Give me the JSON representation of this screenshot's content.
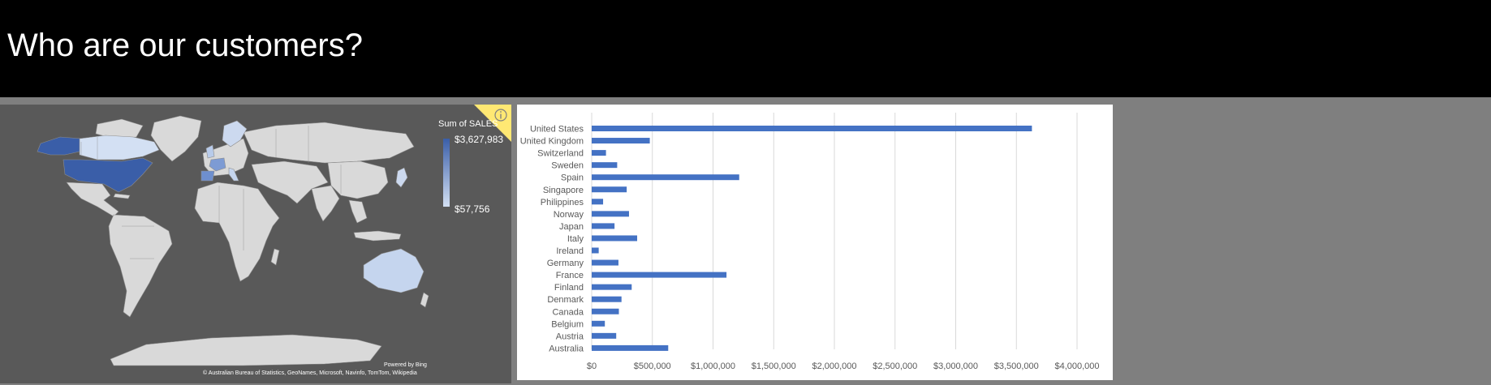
{
  "page": {
    "title": "Who are our customers?",
    "colors": {
      "header_bg": "#000000",
      "page_bg": "#7f7f7f",
      "map_bg": "#595959",
      "bar": "#4472c4"
    }
  },
  "map": {
    "legend_title": "Sum of SALES",
    "legend_max": "$3,627,983",
    "legend_min": "$57,756",
    "powered_by": "Powered by Bing",
    "attribution": "© Australian Bureau of Statistics, GeoNames, Microsoft, Navinfo, TomTom, Wikipedia",
    "info_icon": "info-icon"
  },
  "chart_data": {
    "type": "bar",
    "orientation": "horizontal",
    "categories": [
      "United States",
      "United Kingdom",
      "Switzerland",
      "Sweden",
      "Spain",
      "Singapore",
      "Philippines",
      "Norway",
      "Japan",
      "Italy",
      "Ireland",
      "Germany",
      "France",
      "Finland",
      "Denmark",
      "Canada",
      "Belgium",
      "Austria",
      "Australia"
    ],
    "values": [
      3627983,
      478880,
      117714,
      210014,
      1215686,
      288488,
      94016,
      307464,
      188168,
      374674,
      57756,
      220472,
      1110916,
      329582,
      245638,
      224079,
      108413,
      202063,
      630623
    ],
    "x_ticks": [
      "$0",
      "$500,000",
      "$1,000,000",
      "$1,500,000",
      "$2,000,000",
      "$2,500,000",
      "$3,000,000",
      "$3,500,000",
      "$4,000,000"
    ],
    "xlim": [
      0,
      4000000
    ],
    "grid": true,
    "legend": "none"
  }
}
